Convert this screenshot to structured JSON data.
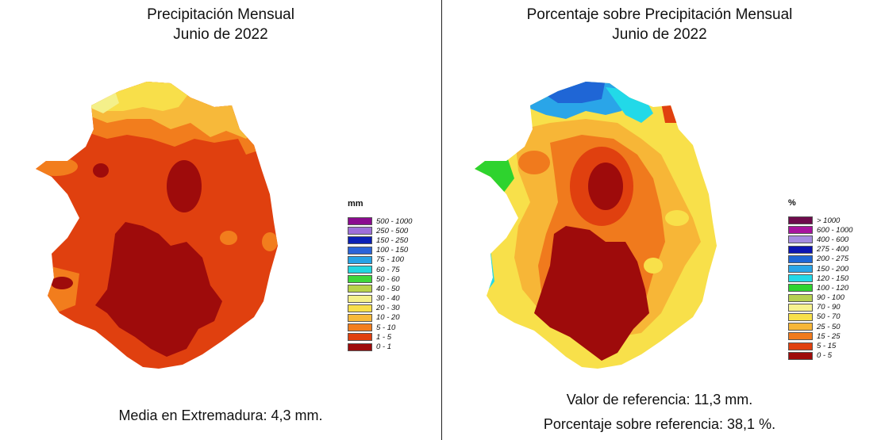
{
  "left": {
    "title_line1": "Precipitación Mensual",
    "title_line2": "Junio de 2022",
    "legend_title": "mm",
    "legend": [
      {
        "label": "500 - 1000",
        "color": "#8b0a8f"
      },
      {
        "label": "250 - 500",
        "color": "#9e6fd8"
      },
      {
        "label": "150 - 250",
        "color": "#0a1fb5"
      },
      {
        "label": "100 - 150",
        "color": "#2a63d8"
      },
      {
        "label": "75 - 100",
        "color": "#26a2e6"
      },
      {
        "label": "60 - 75",
        "color": "#22d6e0"
      },
      {
        "label": "50 - 60",
        "color": "#3ed63a"
      },
      {
        "label": "40 - 50",
        "color": "#b9d24a"
      },
      {
        "label": "30 - 40",
        "color": "#f4f08a"
      },
      {
        "label": "20 - 30",
        "color": "#f8df4a"
      },
      {
        "label": "10 - 20",
        "color": "#f7b93a"
      },
      {
        "label": "5 - 10",
        "color": "#f27d1d"
      },
      {
        "label": "1 - 5",
        "color": "#e0400f"
      },
      {
        "label": "0 - 1",
        "color": "#9e0b0b"
      }
    ],
    "footer": "Media en Extremadura: 4,3 mm."
  },
  "right": {
    "title_line1": "Porcentaje sobre Precipitación Mensual",
    "title_line2": "Junio de 2022",
    "legend_title": "%",
    "legend": [
      {
        "label": "> 1000",
        "color": "#6e0b4c"
      },
      {
        "label": "600 - 1000",
        "color": "#a8139e"
      },
      {
        "label": "400 - 600",
        "color": "#a58be0"
      },
      {
        "label": "275 - 400",
        "color": "#0c14b3"
      },
      {
        "label": "200 - 275",
        "color": "#1f66d6"
      },
      {
        "label": "150 - 200",
        "color": "#2aa5e8"
      },
      {
        "label": "120 - 150",
        "color": "#22d9e8"
      },
      {
        "label": "100 - 120",
        "color": "#2ed32e"
      },
      {
        "label": "90 - 100",
        "color": "#b6d052"
      },
      {
        "label": "70 - 90",
        "color": "#f7f38f"
      },
      {
        "label": "50 - 70",
        "color": "#f8e04a"
      },
      {
        "label": "25 - 50",
        "color": "#f7b637"
      },
      {
        "label": "15 - 25",
        "color": "#f07a1d"
      },
      {
        "label": "5 - 15",
        "color": "#e0400f"
      },
      {
        "label": "0 - 5",
        "color": "#9e0b0b"
      }
    ],
    "footer_line1": "Valor de referencia: 11,3 mm.",
    "footer_line2": "Porcentaje sobre referencia: 38,1 %."
  }
}
